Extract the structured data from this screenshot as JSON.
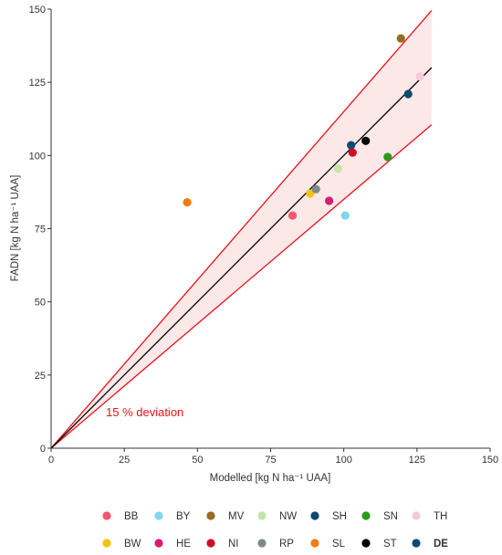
{
  "chart_data": {
    "type": "scatter",
    "xlabel": "Modelled [kg N ha⁻¹ UAA]",
    "ylabel": "FADN [kg N ha⁻¹ UAA]",
    "xlim": [
      0,
      150
    ],
    "ylim": [
      0,
      150
    ],
    "xticks": [
      "0",
      "25",
      "50",
      "75",
      "100",
      "125",
      "150"
    ],
    "yticks": [
      "0",
      "25",
      "50",
      "75",
      "100",
      "125",
      "150"
    ],
    "grid": false,
    "reference_lines": {
      "identity_color": "#000000",
      "deviation_color": "#e8121b",
      "band_fill": "#fde8e8",
      "x_end": 130,
      "slopes": {
        "identity": 1.0,
        "upper": 1.15,
        "lower": 0.85
      }
    },
    "annotation": "15 % deviation",
    "legend_position": "bottom",
    "series": [
      {
        "name": "BB",
        "color": "#f4566c",
        "x": 82.5,
        "y": 79.5
      },
      {
        "name": "BY",
        "color": "#7fd6f0",
        "x": 100.5,
        "y": 79.5
      },
      {
        "name": "MV",
        "color": "#9a6a1f",
        "x": 119.5,
        "y": 140
      },
      {
        "name": "NW",
        "color": "#c4e5a6",
        "x": 98,
        "y": 95.5
      },
      {
        "name": "SH",
        "color": "#0c4a6e",
        "x": 102.5,
        "y": 103.5
      },
      {
        "name": "SN",
        "color": "#2e9a1a",
        "x": 115,
        "y": 99.5
      },
      {
        "name": "TH",
        "color": "#f7c9dc",
        "x": 126,
        "y": 127
      },
      {
        "name": "BW",
        "color": "#f5c211",
        "x": 88.5,
        "y": 87
      },
      {
        "name": "HE",
        "color": "#d81b73",
        "x": 95,
        "y": 84.5
      },
      {
        "name": "NI",
        "color": "#cc0f2a",
        "x": 103,
        "y": 101
      },
      {
        "name": "RP",
        "color": "#7d8a86",
        "x": 90.5,
        "y": 88.5
      },
      {
        "name": "SL",
        "color": "#f07c12",
        "x": 46.5,
        "y": 84
      },
      {
        "name": "ST",
        "color": "#000000",
        "x": 107.5,
        "y": 105
      },
      {
        "name": "DE",
        "color": "#0c4a6e",
        "x": 122,
        "y": 121,
        "bold": true
      }
    ]
  }
}
